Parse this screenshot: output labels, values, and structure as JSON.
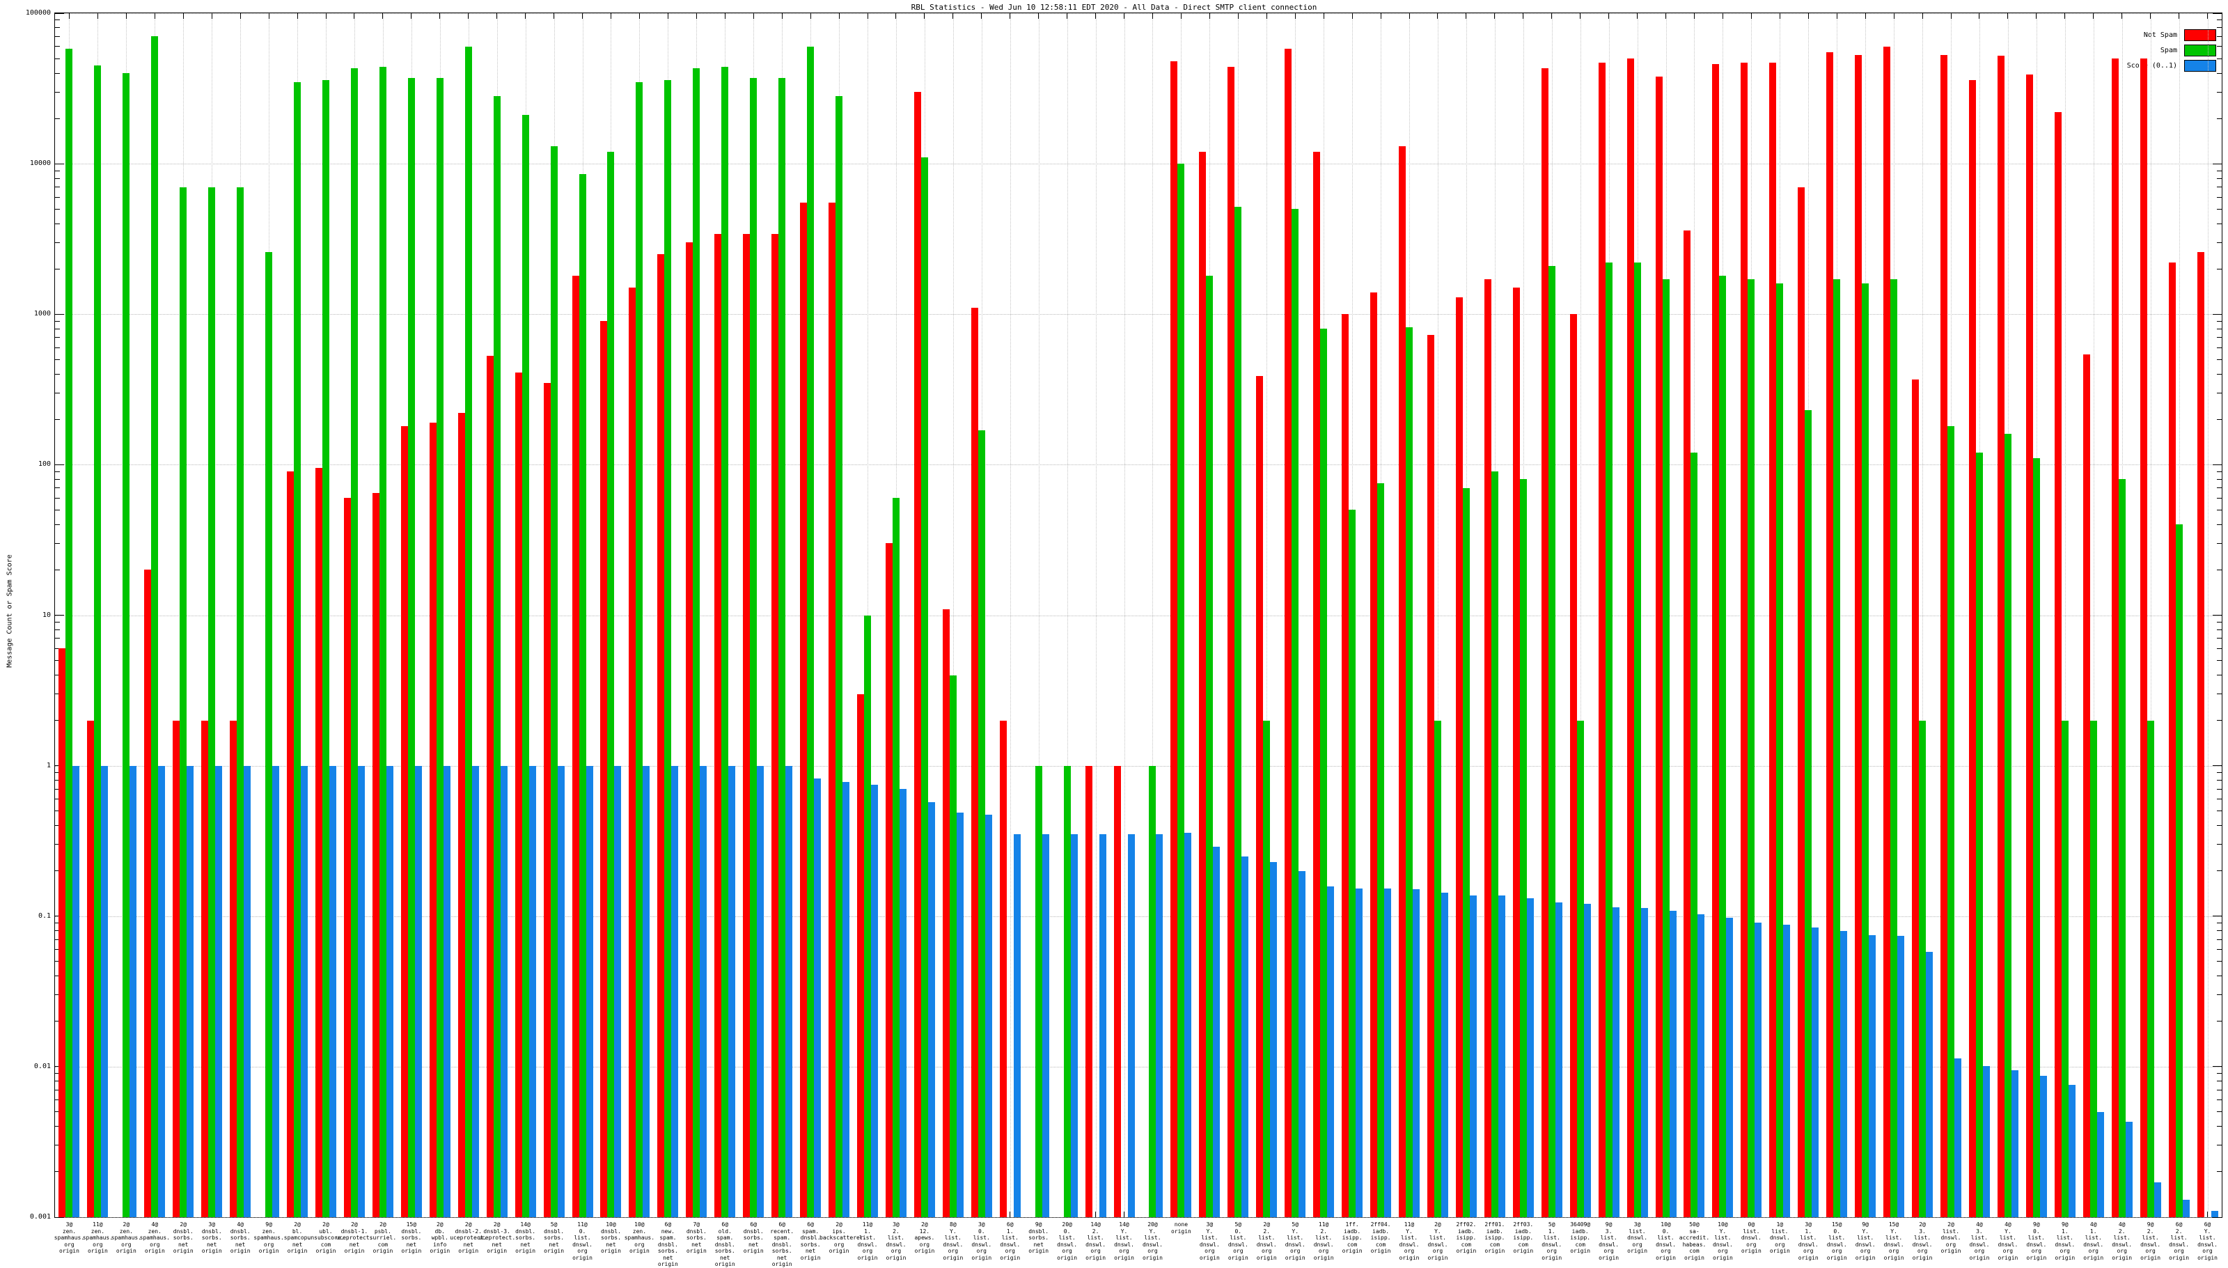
{
  "title": "RBL Statistics - Wed Jun 10 12:58:11 EDT 2020 - All Data - Direct SMTP client connection",
  "y_axis": {
    "label": "Message Count or Spam Score",
    "ticks": [
      "100000",
      "10000",
      "1000",
      "100",
      "10",
      "1",
      "0.1",
      "0.01",
      "0.001"
    ]
  },
  "legend": [
    {
      "label": "Not Spam",
      "color": "#fe0000"
    },
    {
      "label": "Spam",
      "color": "#00c400"
    },
    {
      "label": "Score (0..1)",
      "color": "#1583e8"
    }
  ],
  "chart_data": {
    "type": "bar",
    "y_scale": "log",
    "ylim": [
      0.001,
      100000
    ],
    "grid": true,
    "legend_position": "top-right",
    "categories": [
      "3@\nzen.\nspamhaus.\norg\norigin",
      "11@\nzen.\nspamhaus.\norg\norigin",
      "2@\nzen.\nspamhaus.\norg\norigin",
      "4@\nzen.\nspamhaus.\norg\norigin",
      "2@\ndnsbl.\nsorbs.\nnet\norigin",
      "3@\ndnsbl.\nsorbs.\nnet\norigin",
      "4@\ndnsbl.\nsorbs.\nnet\norigin",
      "9@\nzen.\nspamhaus.\norg\norigin",
      "2@\nbl.\nspamcop.\nnet\norigin",
      "2@\nubl.\nunsubscore.\ncom\norigin",
      "2@\ndnsbl-1.\nuceprotect.\nnet\norigin",
      "2@\npsbl.\nsurriel.\ncom\norigin",
      "15@\ndnsbl.\nsorbs.\nnet\norigin",
      "2@\ndb.\nwpbl.\ninfo\norigin",
      "2@\ndnsbl-2.\nuceprotect.\nnet\norigin",
      "2@\ndnsbl-3.\nuceprotect.\nnet\norigin",
      "14@\ndnsbl.\nsorbs.\nnet\norigin",
      "5@\ndnsbl.\nsorbs.\nnet\norigin",
      "11@\n0.\nlist.\ndnswl.\norg\norigin",
      "10@\ndnsbl.\nsorbs.\nnet\norigin",
      "10@\nzen.\nspamhaus.\norg\norigin",
      "6@\nnew.\nspam.\ndnsbl.\nsorbs.\nnet\norigin",
      "7@\ndnsbl.\nsorbs.\nnet\norigin",
      "6@\nold.\nspam.\ndnsbl.\nsorbs.\nnet\norigin",
      "6@\ndnsbl.\nsorbs.\nnet\norigin",
      "6@\nrecent.\nspam.\ndnsbl.\nsorbs.\nnet\norigin",
      "6@\nspam.\ndnsbl.\nsorbs.\nnet\norigin",
      "2@\nips.\nbackscatterer.\norg\norigin",
      "11@\n1.\nlist.\ndnswl.\norg\norigin",
      "3@\n2.\nlist.\ndnswl.\norg\norigin",
      "2@\n12.\napews.\norg\norigin",
      "8@\nY.\nlist.\ndnswl.\norg\norigin",
      "3@\n0.\nlist.\ndnswl.\norg\norigin",
      "6@\n1.\nlist.\ndnswl.\norg\norigin",
      "9@\ndnsbl.\nsorbs.\nnet\norigin",
      "20@\n0.\nlist.\ndnswl.\norg\norigin",
      "14@\n2.\nlist.\ndnswl.\norg\norigin",
      "14@\nY.\nlist.\ndnswl.\norg\norigin",
      "20@\nY.\nlist.\ndnswl.\norg\norigin",
      "none\norigin",
      "3@\nY.\nlist.\ndnswl.\norg\norigin",
      "5@\n0.\nlist.\ndnswl.\norg\norigin",
      "2@\n2.\nlist.\ndnswl.\norg\norigin",
      "5@\nY.\nlist.\ndnswl.\norg\norigin",
      "11@\n2.\nlist.\ndnswl.\norg\norigin",
      "1ff.\niadb.\nisipp.\ncom\norigin",
      "2ff04.\niadb.\nisipp.\ncom\norigin",
      "11@\nY.\nlist.\ndnswl.\norg\norigin",
      "2@\nY.\nlist.\ndnswl.\norg\norigin",
      "2ff02.\niadb.\nisipp.\ncom\norigin",
      "2ff01.\niadb.\nisipp.\ncom\norigin",
      "2ff03.\niadb.\nisipp.\ncom\norigin",
      "5@\n1.\nlist.\ndnswl.\norg\norigin",
      "36409@\niadb.\nisipp.\ncom\norigin",
      "9@\n3.\nlist.\ndnswl.\norg\norigin",
      "3@\nlist.\ndnswl.\norg\norigin",
      "10@\n0.\nlist.\ndnswl.\norg\norigin",
      "50@\nsa-accredit.\nhabeas.\ncom\norigin",
      "10@\nY.\nlist.\ndnswl.\norg\norigin",
      "0@\nlist.\ndnswl.\norg\norigin",
      "1@\nlist.\ndnswl.\norg\norigin",
      "3@\n1.\nlist.\ndnswl.\norg\norigin",
      "15@\n0.\nlist.\ndnswl.\norg\norigin",
      "9@\nY.\nlist.\ndnswl.\norg\norigin",
      "15@\nY.\nlist.\ndnswl.\norg\norigin",
      "2@\n3.\nlist.\ndnswl.\norg\norigin",
      "2@\nlist.\ndnswl.\norg\norigin",
      "4@\n3.\nlist.\ndnswl.\norg\norigin",
      "4@\nY.\nlist.\ndnswl.\norg\norigin",
      "9@\n0.\nlist.\ndnswl.\norg\norigin",
      "9@\n1.\nlist.\ndnswl.\norg\norigin",
      "4@\n1.\nlist.\ndnswl.\norg\norigin",
      "4@\n2.\nlist.\ndnswl.\norg\norigin",
      "9@\n2.\nlist.\ndnswl.\norg\norigin",
      "6@\n2.\nlist.\ndnswl.\norg\norigin",
      "6@\nY.\nlist.\ndnswl.\norg\norigin"
    ],
    "series": [
      {
        "name": "Not Spam",
        "color": "#fe0000",
        "values": [
          6,
          2,
          0,
          20,
          2,
          2,
          2,
          0,
          90,
          95,
          60,
          65,
          180,
          190,
          220,
          530,
          410,
          350,
          1800,
          900,
          1500,
          2500,
          3000,
          3400,
          3400,
          3400,
          5500,
          5500,
          3,
          30,
          30000,
          11,
          1100,
          2,
          0,
          0,
          1,
          1,
          0,
          48000,
          12000,
          44000,
          390,
          58000,
          12000,
          1000,
          1400,
          13000,
          730,
          1300,
          1700,
          1500,
          43000,
          1000,
          47000,
          50000,
          38000,
          3600,
          46000,
          47000,
          47000,
          7000,
          55000,
          53000,
          60000,
          370,
          53000,
          36000,
          52000,
          39000,
          22000,
          540,
          50000,
          50000,
          2200,
          2600
        ]
      },
      {
        "name": "Spam",
        "color": "#00c400",
        "values": [
          58000,
          45000,
          40000,
          70000,
          7000,
          7000,
          7000,
          2600,
          35000,
          36000,
          43000,
          44000,
          37000,
          37000,
          60000,
          28000,
          21000,
          13000,
          8500,
          12000,
          35000,
          36000,
          43000,
          44000,
          37000,
          37000,
          60000,
          28000,
          10,
          60,
          11000,
          4,
          170,
          0,
          1,
          1,
          0,
          0,
          1,
          10000,
          1800,
          5200,
          2,
          5000,
          800,
          50,
          75,
          820,
          2,
          70,
          90,
          80,
          2100,
          2,
          2200,
          2200,
          1700,
          120,
          1800,
          1700,
          1600,
          230,
          1700,
          1600,
          1700,
          2,
          180,
          120,
          160,
          110,
          2,
          2,
          80,
          2,
          40,
          0
        ]
      },
      {
        "name": "Score (0..1)",
        "color": "#1583e8",
        "values": [
          1.0,
          1.0,
          1.0,
          1.0,
          1.0,
          1.0,
          1.0,
          1.0,
          1.0,
          1.0,
          1.0,
          1.0,
          1.0,
          1.0,
          1.0,
          1.0,
          1.0,
          1.0,
          1.0,
          1.0,
          1.0,
          1.0,
          1.0,
          1.0,
          1.0,
          1.0,
          0.82,
          0.78,
          0.75,
          0.7,
          0.57,
          0.49,
          0.47,
          0.35,
          0.35,
          0.35,
          0.35,
          0.35,
          0.35,
          0.36,
          0.29,
          0.25,
          0.23,
          0.2,
          0.158,
          0.152,
          0.152,
          0.151,
          0.144,
          0.138,
          0.137,
          0.132,
          0.124,
          0.121,
          0.114,
          0.113,
          0.109,
          0.103,
          0.098,
          0.091,
          0.088,
          0.084,
          0.08,
          0.075,
          0.074,
          0.058,
          0.0114,
          0.0101,
          0.0095,
          0.0087,
          0.0076,
          0.005,
          0.0043,
          0.0017,
          0.0013,
          0.0011
        ]
      }
    ]
  }
}
